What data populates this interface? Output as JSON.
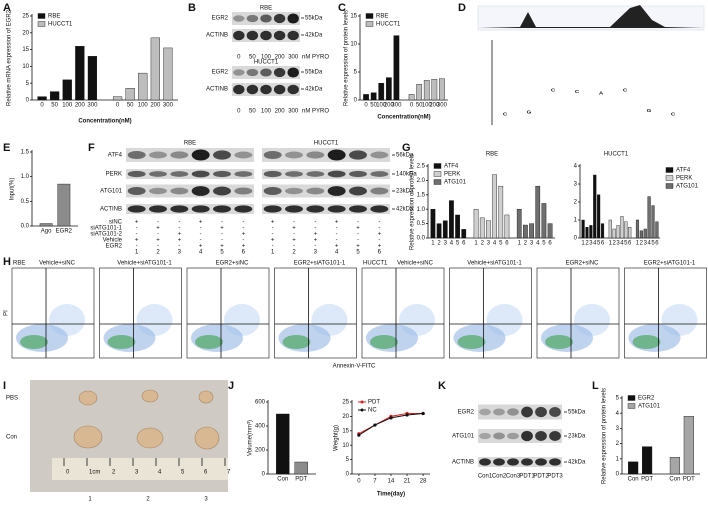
{
  "panel_labels": [
    "A",
    "B",
    "C",
    "D",
    "E",
    "F",
    "G",
    "H",
    "I",
    "J",
    "K",
    "L"
  ],
  "chart_data": [
    {
      "type": "bar",
      "ylabel": "Relative mRNA expression of EGR2",
      "xlabel": "Concentration(nM)",
      "legend": "upper left",
      "categories": [
        "0",
        "50",
        "100",
        "200",
        "300"
      ],
      "series": [
        {
          "name": "RBE",
          "color": "#111111",
          "values": [
            1,
            2.5,
            6,
            16,
            13
          ]
        },
        {
          "name": "HUCCT1",
          "color": "#bdbdbd",
          "values": [
            1,
            3.5,
            8,
            18.5,
            15.5
          ]
        }
      ],
      "ylim": [
        0,
        25
      ],
      "yticks": [
        0,
        5,
        10,
        15,
        20,
        25
      ]
    },
    {
      "type": "bar",
      "ylabel": "Relative expression of protein levels",
      "xlabel": "Concentration(nM)",
      "legend": "upper left",
      "categories": [
        "0",
        "50",
        "100",
        "200",
        "300"
      ],
      "series": [
        {
          "name": "RBE",
          "color": "#111111",
          "values": [
            1,
            1.3,
            3,
            4,
            11.5
          ]
        },
        {
          "name": "HUCCT1",
          "color": "#bdbdbd",
          "values": [
            1,
            2.8,
            3.5,
            3.7,
            3.8
          ]
        }
      ],
      "ylim": [
        0,
        15
      ],
      "yticks": [
        0,
        5,
        10,
        15
      ]
    },
    {
      "type": "bar",
      "ylabel": "Input(%)",
      "categories": [
        "Ago",
        "EGR2"
      ],
      "values": [
        0.05,
        0.85
      ],
      "color": "#8c8c8c",
      "ylim": [
        0,
        1.5
      ],
      "yticks": [
        {
          "value": 0,
          "label": "0.0"
        },
        {
          "value": 0.5,
          "label": "0.5"
        },
        {
          "value": 1,
          "label": "1.0"
        },
        {
          "value": 1.5,
          "label": "1.5"
        }
      ]
    },
    {
      "type": "bar",
      "title": "RBE",
      "ylabel": "Relative expression of protein levels",
      "legend": "upper left",
      "categories": [
        "1",
        "2",
        "3",
        "4",
        "5",
        "6"
      ],
      "series": [
        {
          "name": "ATF4",
          "color": "#111111",
          "values": [
            1,
            0.5,
            0.6,
            1.3,
            0.8,
            0.3
          ]
        },
        {
          "name": "PERK",
          "color": "#cfcfcf",
          "values": [
            1,
            0.7,
            0.6,
            2.2,
            1.8,
            0.8
          ]
        },
        {
          "name": "ATG101",
          "color": "#6e6e6e",
          "values": [
            1,
            0.45,
            0.5,
            1.8,
            1.2,
            0.5
          ]
        }
      ],
      "ylim": [
        0,
        2.5
      ],
      "yticks": [
        {
          "value": 0,
          "label": "0.0"
        },
        {
          "value": 0.5,
          "label": "0.5"
        },
        {
          "value": 1,
          "label": "1.0"
        },
        {
          "value": 1.5,
          "label": "1.5"
        },
        {
          "value": 2,
          "label": "2.0"
        },
        {
          "value": 2.5,
          "label": "2.5"
        }
      ]
    },
    {
      "type": "bar",
      "title": "HUCCT1",
      "legend": "right",
      "categories": [
        "1",
        "2",
        "3",
        "4",
        "5",
        "6"
      ],
      "series": [
        {
          "name": "ATF4",
          "color": "#111111",
          "values": [
            1,
            0.6,
            0.7,
            3.5,
            2.4,
            0.8
          ]
        },
        {
          "name": "PERK",
          "color": "#cfcfcf",
          "values": [
            1,
            0.5,
            0.7,
            1.2,
            0.9,
            0.6
          ]
        },
        {
          "name": "ATG101",
          "color": "#6e6e6e",
          "values": [
            1,
            0.4,
            0.5,
            2.3,
            1.8,
            0.9
          ]
        }
      ],
      "ylim": [
        0,
        4
      ],
      "yticks": [
        0,
        1,
        2,
        3,
        4
      ]
    },
    {
      "type": "bar",
      "ylabel": "Volume(mm³)",
      "categories": [
        "Con",
        "PDT"
      ],
      "values": [
        500,
        100
      ],
      "colors": [
        "#111111",
        "#8c8c8c"
      ],
      "ylim": [
        0,
        600
      ],
      "yticks": [
        0,
        200,
        400,
        600
      ]
    },
    {
      "type": "line",
      "ylabel": "Weight(g)",
      "xlabel": "Time(day)",
      "legend": "upper left",
      "x": [
        0,
        7,
        14,
        21,
        28
      ],
      "series": [
        {
          "name": "PDT",
          "color": "#e02020",
          "values": [
            14,
            17,
            20,
            21,
            21
          ]
        },
        {
          "name": "NC",
          "color": "#111111",
          "values": [
            13.5,
            17,
            19.5,
            20.5,
            21
          ]
        }
      ],
      "xlim": [
        -3,
        31
      ],
      "xticks": [
        0,
        7,
        14,
        21,
        28
      ],
      "ylim": [
        0,
        25
      ],
      "yticks": [
        0,
        5,
        10,
        15,
        20,
        25
      ]
    },
    {
      "type": "bar",
      "ylabel": "Relative expression of protein levels",
      "legend": "upper left",
      "categories": [
        "Con",
        "PDT"
      ],
      "series": [
        {
          "name": "EGR2",
          "color": "#111111",
          "values": [
            0.8,
            1.8
          ]
        },
        {
          "name": "ATG101",
          "color": "#a6a6a6",
          "values": [
            1.1,
            3.8
          ]
        }
      ],
      "ylim": [
        0,
        5
      ],
      "yticks": [
        0,
        1,
        2,
        3,
        4,
        5
      ]
    }
  ],
  "blot_b": {
    "cell_lines": [
      "RBE",
      "HUCCT1"
    ],
    "proteins": [
      "EGR2",
      "ACTINB"
    ],
    "sizes": [
      "55kDa",
      "42kDa"
    ],
    "lanes": [
      "0",
      "50",
      "100",
      "200",
      "300"
    ],
    "unit": "nM PYRO"
  },
  "motif": [
    "C",
    "G",
    "C",
    "C",
    "A",
    "C",
    "G",
    "C"
  ],
  "blot_f": {
    "cell_lines": [
      "RBE",
      "HUCCT1"
    ],
    "proteins": [
      "ATF4",
      "PERK",
      "ATG101",
      "ACTINB"
    ],
    "sizes": [
      "56kDa",
      "140kDa",
      "23kDa",
      "42kDa"
    ],
    "conditions": [
      "siNC",
      "siATG101-1",
      "siATG101-2",
      "Vehicle",
      "EGR2"
    ],
    "matrix": [
      [
        "+",
        "-",
        "-",
        "+",
        "-",
        "-"
      ],
      [
        "-",
        "+",
        "-",
        "-",
        "+",
        "-"
      ],
      [
        "-",
        "-",
        "+",
        "-",
        "-",
        "+"
      ],
      [
        "+",
        "+",
        "+",
        "-",
        "-",
        "-"
      ],
      [
        "-",
        "-",
        "-",
        "+",
        "+",
        "+"
      ]
    ],
    "lanes": [
      "1",
      "2",
      "3",
      "4",
      "5",
      "6"
    ]
  },
  "flow_h": {
    "cell_lines": [
      "RBE",
      "HUCCT1"
    ],
    "titles": [
      "Vehicle+siNC",
      "Vehicle+siATG101-1",
      "EGR2+siNC",
      "EGR2+siATG101-1"
    ],
    "ylabel": "PI",
    "xlabel": "Annexin-V-FITC"
  },
  "photo_i": {
    "rows": [
      "PBS",
      "Con"
    ],
    "columns": [
      "1",
      "2",
      "3"
    ],
    "ruler": [
      "0",
      "1cm",
      "2",
      "3",
      "4",
      "5",
      "6",
      "7"
    ]
  },
  "blot_k": {
    "proteins": [
      "EGR2",
      "ATG101",
      "ACTINB"
    ],
    "sizes": [
      "55kDa",
      "23kDa",
      "42kDa"
    ],
    "lanes": [
      "Con1",
      "Con2",
      "Con3",
      "PDT1",
      "PDT2",
      "PDT3"
    ]
  }
}
